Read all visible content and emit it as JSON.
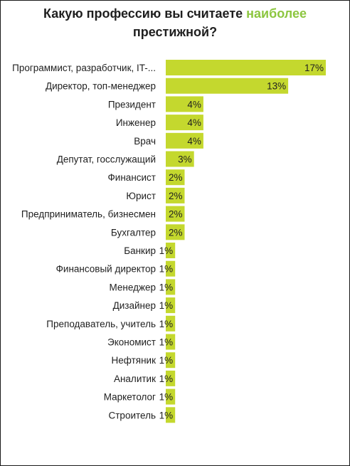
{
  "chart_data": {
    "type": "bar",
    "orientation": "horizontal",
    "title_parts": [
      "Какую профессию вы считаете ",
      "наиболее",
      " престижной?"
    ],
    "categories": [
      "Программист, разработчик, IT-...",
      "Директор, топ-менеджер",
      "Президент",
      "Инженер",
      "Врач",
      "Депутат, госслужащий",
      "Финансист",
      "Юрист",
      "Предприниматель, бизнесмен",
      "Бухгалтер",
      "Банкир",
      "Финансовый директор",
      "Менеджер",
      "Дизайнер",
      "Преподаватель, учитель",
      "Экономист",
      "Нефтяник",
      "Аналитик",
      "Маркетолог",
      "Строитель"
    ],
    "values": [
      17,
      13,
      4,
      4,
      4,
      3,
      2,
      2,
      2,
      2,
      1,
      1,
      1,
      1,
      1,
      1,
      1,
      1,
      1,
      1
    ],
    "value_labels": [
      "17%",
      "13%",
      "4%",
      "4%",
      "4%",
      "3%",
      "2%",
      "2%",
      "2%",
      "2%",
      "1%",
      "1%",
      "1%",
      "1%",
      "1%",
      "1%",
      "1%",
      "1%",
      "1%",
      "1%"
    ],
    "bar_color": "#c4d82e",
    "accent_color": "#8cc63f",
    "xlim": [
      0,
      17
    ],
    "grid": false,
    "legend": "none"
  }
}
